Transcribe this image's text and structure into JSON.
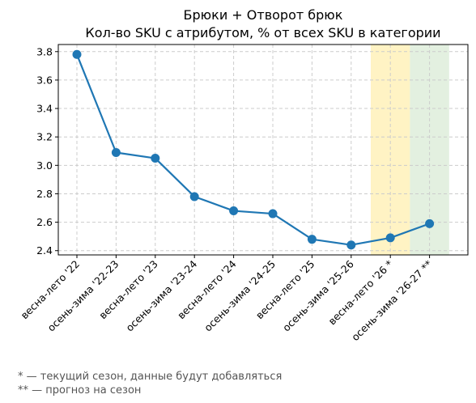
{
  "chart_data": {
    "type": "line",
    "title": "Брюки + Отворот брюк",
    "subtitle": "Кол-во SKU с атрибутом, % от всех SKU в категории",
    "categories": [
      "весна-лето '22",
      "осень-зима '22-23",
      "весна-лето '23",
      "осень-зима '23-24",
      "весна-лето '24",
      "осень-зима '24-25",
      "весна-лето '25",
      "осень-зима '25-26",
      "весна-лето '26 *",
      "осень-зима '26-27 **"
    ],
    "series": [
      {
        "values": [
          3.78,
          3.09,
          3.05,
          2.78,
          2.68,
          2.66,
          2.48,
          2.44,
          2.49,
          2.59
        ],
        "color": "#1f77b4"
      }
    ],
    "ylim": [
      2.37,
      3.85
    ],
    "yticks": [
      "2.4",
      "2.6",
      "2.8",
      "3.0",
      "3.2",
      "3.4",
      "3.6",
      "3.8"
    ],
    "grid": true,
    "highlights": [
      {
        "category": "весна-лето '26 *",
        "color": "#fff3c4"
      },
      {
        "category": "осень-зима '26-27 **",
        "color": "#e3f0e0"
      }
    ]
  },
  "footnotes": [
    "* — текущий сезон, данные будут добавляться",
    "** — прогноз на сезон"
  ]
}
